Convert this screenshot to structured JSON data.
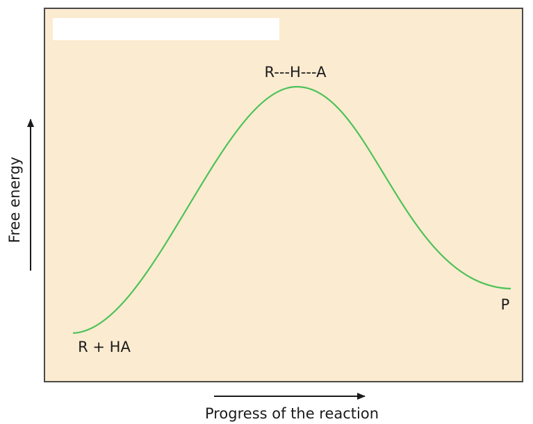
{
  "y_axis_label": "Free energy",
  "x_axis_label": "Progress of the reaction",
  "labels": {
    "transition_state": "R---H---A",
    "reactants": "R + HA",
    "products": "P"
  }
}
